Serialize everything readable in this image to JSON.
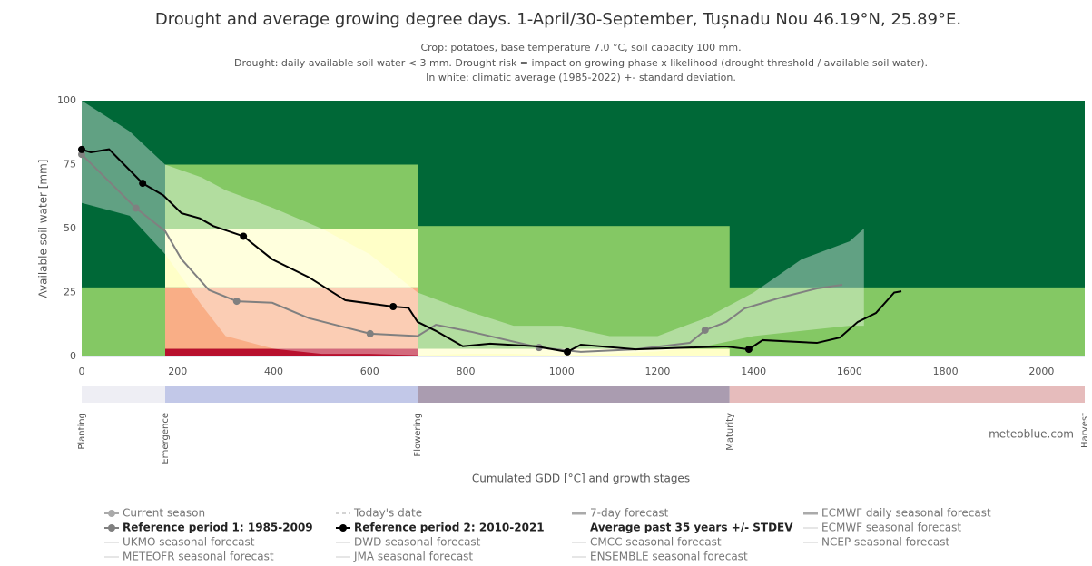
{
  "chart_data": {
    "type": "line",
    "title": "Drought and average growing degree days. 1-April/30-September, Tușnadu Nou 46.19°N, 25.89°E.",
    "subtitle": [
      "Crop: potatoes, base temperature 7.0 °C, soil capacity 100 mm.",
      "Drought: daily available soil water < 3 mm. Drought risk = impact on growing phase x likelihood (drought threshold / available soil water).",
      "In white: climatic average (1985-2022) +- standard deviation."
    ],
    "y_label": "Available soil water [mm]",
    "x_label": "Cumulated GDD [°C] and growth stages",
    "watermark": "meteoblue.com",
    "xlim": [
      0,
      2090
    ],
    "ylim": [
      0,
      100
    ],
    "xticks": [
      0,
      200,
      400,
      600,
      800,
      1000,
      1200,
      1400,
      1600,
      1800,
      2000
    ],
    "yticks": [
      0,
      25,
      50,
      75,
      100
    ],
    "zones": [
      {
        "x0": 0,
        "x1": 2090,
        "y0": 0,
        "y1": 100,
        "color": "#006837"
      },
      {
        "x0": 0,
        "x1": 2090,
        "y0": 0,
        "y1": 27,
        "color": "#84c864"
      },
      {
        "x0": 174,
        "x1": 700,
        "y0": 50,
        "y1": 75,
        "color": "#84c864"
      },
      {
        "x0": 174,
        "x1": 700,
        "y0": 27,
        "y1": 50,
        "color": "#ffffc8"
      },
      {
        "x0": 174,
        "x1": 700,
        "y0": 3,
        "y1": 27,
        "color": "#f9ae86"
      },
      {
        "x0": 174,
        "x1": 700,
        "y0": 0,
        "y1": 3,
        "color": "#b8102e"
      },
      {
        "x0": 700,
        "x1": 1350,
        "y0": 3,
        "y1": 51,
        "color": "#84c864"
      },
      {
        "x0": 700,
        "x1": 1350,
        "y0": 0,
        "y1": 3,
        "color": "#ffffc8"
      }
    ],
    "band": {
      "x": [
        0,
        100,
        174,
        250,
        300,
        400,
        500,
        600,
        700,
        800,
        900,
        1000,
        1100,
        1200,
        1300,
        1400,
        1500,
        1600,
        1630
      ],
      "upper": [
        100,
        88,
        75,
        70,
        65,
        58,
        50,
        40,
        25,
        18,
        12,
        12,
        8,
        8,
        15,
        25,
        38,
        45,
        50
      ],
      "lower": [
        60,
        55,
        40,
        20,
        8,
        3,
        1,
        1,
        0.5,
        1,
        1,
        0.5,
        1,
        2,
        4,
        8,
        10,
        12,
        12
      ],
      "color": "#ffffff"
    },
    "series": [
      {
        "name": "Reference period 1: 1985-2009",
        "color": "#808080",
        "x": [
          0,
          113,
          174,
          208,
          265,
          323,
          397,
          473,
          601,
          700,
          738,
          813,
          953,
          1040,
          1154,
          1267,
          1299,
          1343,
          1381,
          1456,
          1532,
          1585
        ],
        "values": [
          79,
          58,
          49,
          38,
          26,
          21.6,
          21,
          15,
          8.9,
          8,
          12.4,
          9.6,
          3.5,
          1.8,
          2.8,
          5.3,
          10.3,
          13.5,
          18.8,
          23,
          26.6,
          28
        ],
        "markers": [
          0,
          1,
          5,
          8,
          12,
          16
        ]
      },
      {
        "name": "Reference period 2: 2010-2021",
        "color": "#000000",
        "x": [
          0,
          19,
          57,
          127,
          170,
          208,
          246,
          274,
          337,
          397,
          473,
          549,
          649,
          681,
          700,
          738,
          794,
          851,
          946,
          1012,
          1040,
          1154,
          1267,
          1343,
          1390,
          1419,
          1532,
          1580,
          1617,
          1655,
          1693,
          1708
        ],
        "values": [
          80.9,
          79.8,
          81,
          67.7,
          63,
          56,
          54,
          51,
          47,
          38,
          31,
          22,
          19.5,
          19,
          13.5,
          10,
          4,
          5,
          4,
          1.8,
          4.6,
          2.8,
          3.5,
          3.9,
          2.8,
          6.4,
          5.3,
          7.4,
          13.5,
          17,
          25,
          25.5
        ],
        "markers": [
          0,
          3,
          8,
          12,
          19,
          24
        ]
      }
    ],
    "stages": [
      {
        "name": "Planting",
        "x": 0,
        "color": "#eeeef4"
      },
      {
        "name": "Emergence",
        "x": 174,
        "color": "#c2c8e8"
      },
      {
        "name": "Flowering",
        "x": 700,
        "color": "#aa9cb0"
      },
      {
        "name": "Maturity",
        "x": 1350,
        "color": "#e6bcbc"
      },
      {
        "name": "Harvest",
        "x": 2090
      }
    ],
    "legend": [
      [
        {
          "label": "Current season",
          "symbol": "dot",
          "color": "#aaaaaa"
        },
        {
          "label": "Reference period 1: 1985-2009",
          "symbol": "dot",
          "color": "#808080",
          "bold": true
        },
        {
          "label": "UKMO seasonal forecast",
          "symbol": "line",
          "color": "#cccccc"
        },
        {
          "label": "METEOFR seasonal forecast",
          "symbol": "line",
          "color": "#cccccc"
        }
      ],
      [
        {
          "label": "Today's date",
          "symbol": "dash",
          "color": "#aaaaaa"
        },
        {
          "label": "Reference period 2: 2010-2021",
          "symbol": "dot",
          "color": "#000000",
          "bold": true
        },
        {
          "label": "DWD seasonal forecast",
          "symbol": "line",
          "color": "#cccccc"
        },
        {
          "label": "JMA seasonal forecast",
          "symbol": "line",
          "color": "#cccccc"
        }
      ],
      [
        {
          "label": "7-day forecast",
          "symbol": "thick",
          "color": "#aaaaaa"
        },
        {
          "label": "Average past 35 years +/- STDEV",
          "symbol": "box",
          "color": "#ffffff",
          "bold": true
        },
        {
          "label": "CMCC seasonal forecast",
          "symbol": "line",
          "color": "#cccccc"
        },
        {
          "label": "ENSEMBLE seasonal forecast",
          "symbol": "line",
          "color": "#cccccc"
        }
      ],
      [
        {
          "label": "ECMWF daily seasonal forecast",
          "symbol": "thick",
          "color": "#aaaaaa"
        },
        {
          "label": "ECMWF seasonal forecast",
          "symbol": "line",
          "color": "#cccccc"
        },
        {
          "label": "NCEP seasonal forecast",
          "symbol": "line",
          "color": "#cccccc"
        }
      ]
    ]
  }
}
